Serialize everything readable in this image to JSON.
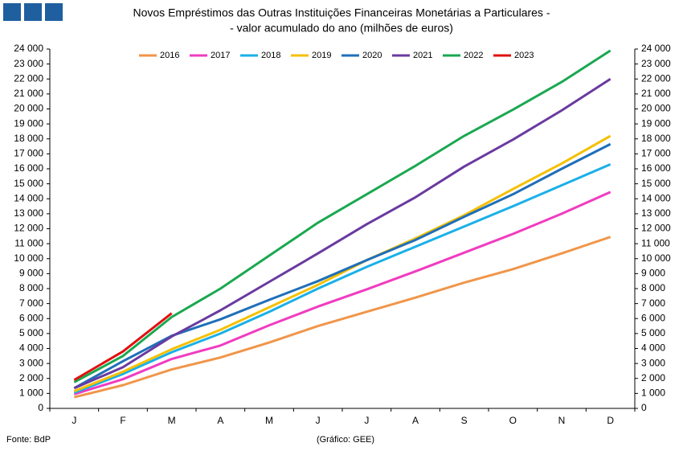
{
  "chart_data": {
    "type": "line",
    "title_lines": [
      "Novos Empréstimos das Outras Instituições Financeiras Monetárias a Particulares -",
      "- valor acumulado do ano (milhões de euros)"
    ],
    "source": "Fonte: BdP",
    "credit": "(Gráfico: GEE)",
    "categories": [
      "J",
      "F",
      "M",
      "A",
      "M",
      "J",
      "J",
      "A",
      "S",
      "O",
      "N",
      "D"
    ],
    "legend": "top",
    "series": [
      {
        "name": "2016",
        "color": "#f0964a",
        "values": [
          750,
          1550,
          2600,
          3400,
          4400,
          5500,
          6450,
          7400,
          8400,
          9300,
          10350,
          11450
        ]
      },
      {
        "name": "2017",
        "color": "#f03cc0",
        "values": [
          950,
          1950,
          3300,
          4200,
          5550,
          6800,
          7950,
          9150,
          10400,
          11650,
          13000,
          14450
        ]
      },
      {
        "name": "2018",
        "color": "#1ab0e8",
        "values": [
          1050,
          2300,
          3750,
          5000,
          6450,
          8000,
          9450,
          10800,
          12150,
          13500,
          14900,
          16300
        ]
      },
      {
        "name": "2019",
        "color": "#f5c000",
        "values": [
          1150,
          2450,
          3950,
          5250,
          6750,
          8250,
          9900,
          11350,
          12900,
          14650,
          16350,
          18200
        ]
      },
      {
        "name": "2020",
        "color": "#1f6fb8",
        "values": [
          1350,
          3150,
          4850,
          5950,
          7250,
          8500,
          9900,
          11250,
          12800,
          14300,
          16000,
          17650
        ]
      },
      {
        "name": "2021",
        "color": "#6a3aa0",
        "values": [
          1350,
          2750,
          4800,
          6550,
          8450,
          10350,
          12300,
          14100,
          16150,
          17950,
          19900,
          22000
        ]
      },
      {
        "name": "2022",
        "color": "#1aa850",
        "values": [
          1750,
          3500,
          6100,
          8000,
          10200,
          12400,
          14300,
          16200,
          18200,
          19950,
          21800,
          23900
        ]
      },
      {
        "name": "2023",
        "color": "#e01010",
        "values": [
          1900,
          3800,
          6350,
          null,
          null,
          null,
          null,
          null,
          null,
          null,
          null,
          null
        ]
      }
    ],
    "ylim": [
      0,
      24000
    ],
    "yticks": [
      0,
      {
        "value": 1000,
        "label": "1 000"
      },
      {
        "value": 2000,
        "label": "2 000"
      },
      {
        "value": 3000,
        "label": "3 000"
      },
      {
        "value": 4000,
        "label": "4 000"
      },
      {
        "value": 5000,
        "label": "5 000"
      },
      {
        "value": 6000,
        "label": "6 000"
      },
      {
        "value": 7000,
        "label": "7 000"
      },
      {
        "value": 8000,
        "label": "8 000"
      },
      {
        "value": 9000,
        "label": "9 000"
      },
      {
        "value": 10000,
        "label": "10 000"
      },
      {
        "value": 11000,
        "label": "11 000"
      },
      {
        "value": 12000,
        "label": "12 000"
      },
      {
        "value": 13000,
        "label": "13 000"
      },
      {
        "value": 14000,
        "label": "14 000"
      },
      {
        "value": 15000,
        "label": "15 000"
      },
      {
        "value": 16000,
        "label": "16 000"
      },
      {
        "value": 17000,
        "label": "17 000"
      },
      {
        "value": 18000,
        "label": "18 000"
      },
      {
        "value": 19000,
        "label": "19 000"
      },
      {
        "value": 20000,
        "label": "20 000"
      },
      {
        "value": 21000,
        "label": "21 000"
      },
      {
        "value": 22000,
        "label": "22 000"
      },
      {
        "value": 23000,
        "label": "23 000"
      },
      {
        "value": 24000,
        "label": "24 000"
      }
    ],
    "y2lim": [
      0,
      24000
    ],
    "y2ticks": [
      0,
      {
        "value": 1000,
        "label": "1 000"
      },
      {
        "value": 2000,
        "label": "2 000"
      },
      {
        "value": 3000,
        "label": "3 000"
      },
      {
        "value": 4000,
        "label": "4 000"
      },
      {
        "value": 5000,
        "label": "5 000"
      },
      {
        "value": 6000,
        "label": "6 000"
      },
      {
        "value": 7000,
        "label": "7 000"
      },
      {
        "value": 8000,
        "label": "8 000"
      },
      {
        "value": 9000,
        "label": "9 000"
      },
      {
        "value": 10000,
        "label": "10 000"
      },
      {
        "value": 11000,
        "label": "11 000"
      },
      {
        "value": 12000,
        "label": "12 000"
      },
      {
        "value": 13000,
        "label": "13 000"
      },
      {
        "value": 14000,
        "label": "14 000"
      },
      {
        "value": 15000,
        "label": "15 000"
      },
      {
        "value": 16000,
        "label": "16 000"
      },
      {
        "value": 17000,
        "label": "17 000"
      },
      {
        "value": 18000,
        "label": "18 000"
      },
      {
        "value": 19000,
        "label": "19 000"
      },
      {
        "value": 20000,
        "label": "20 000"
      },
      {
        "value": 21000,
        "label": "21 000"
      },
      {
        "value": 22000,
        "label": "22 000"
      },
      {
        "value": 23000,
        "label": "23 000"
      },
      {
        "value": 24000,
        "label": "24 000"
      }
    ],
    "grid": false
  }
}
